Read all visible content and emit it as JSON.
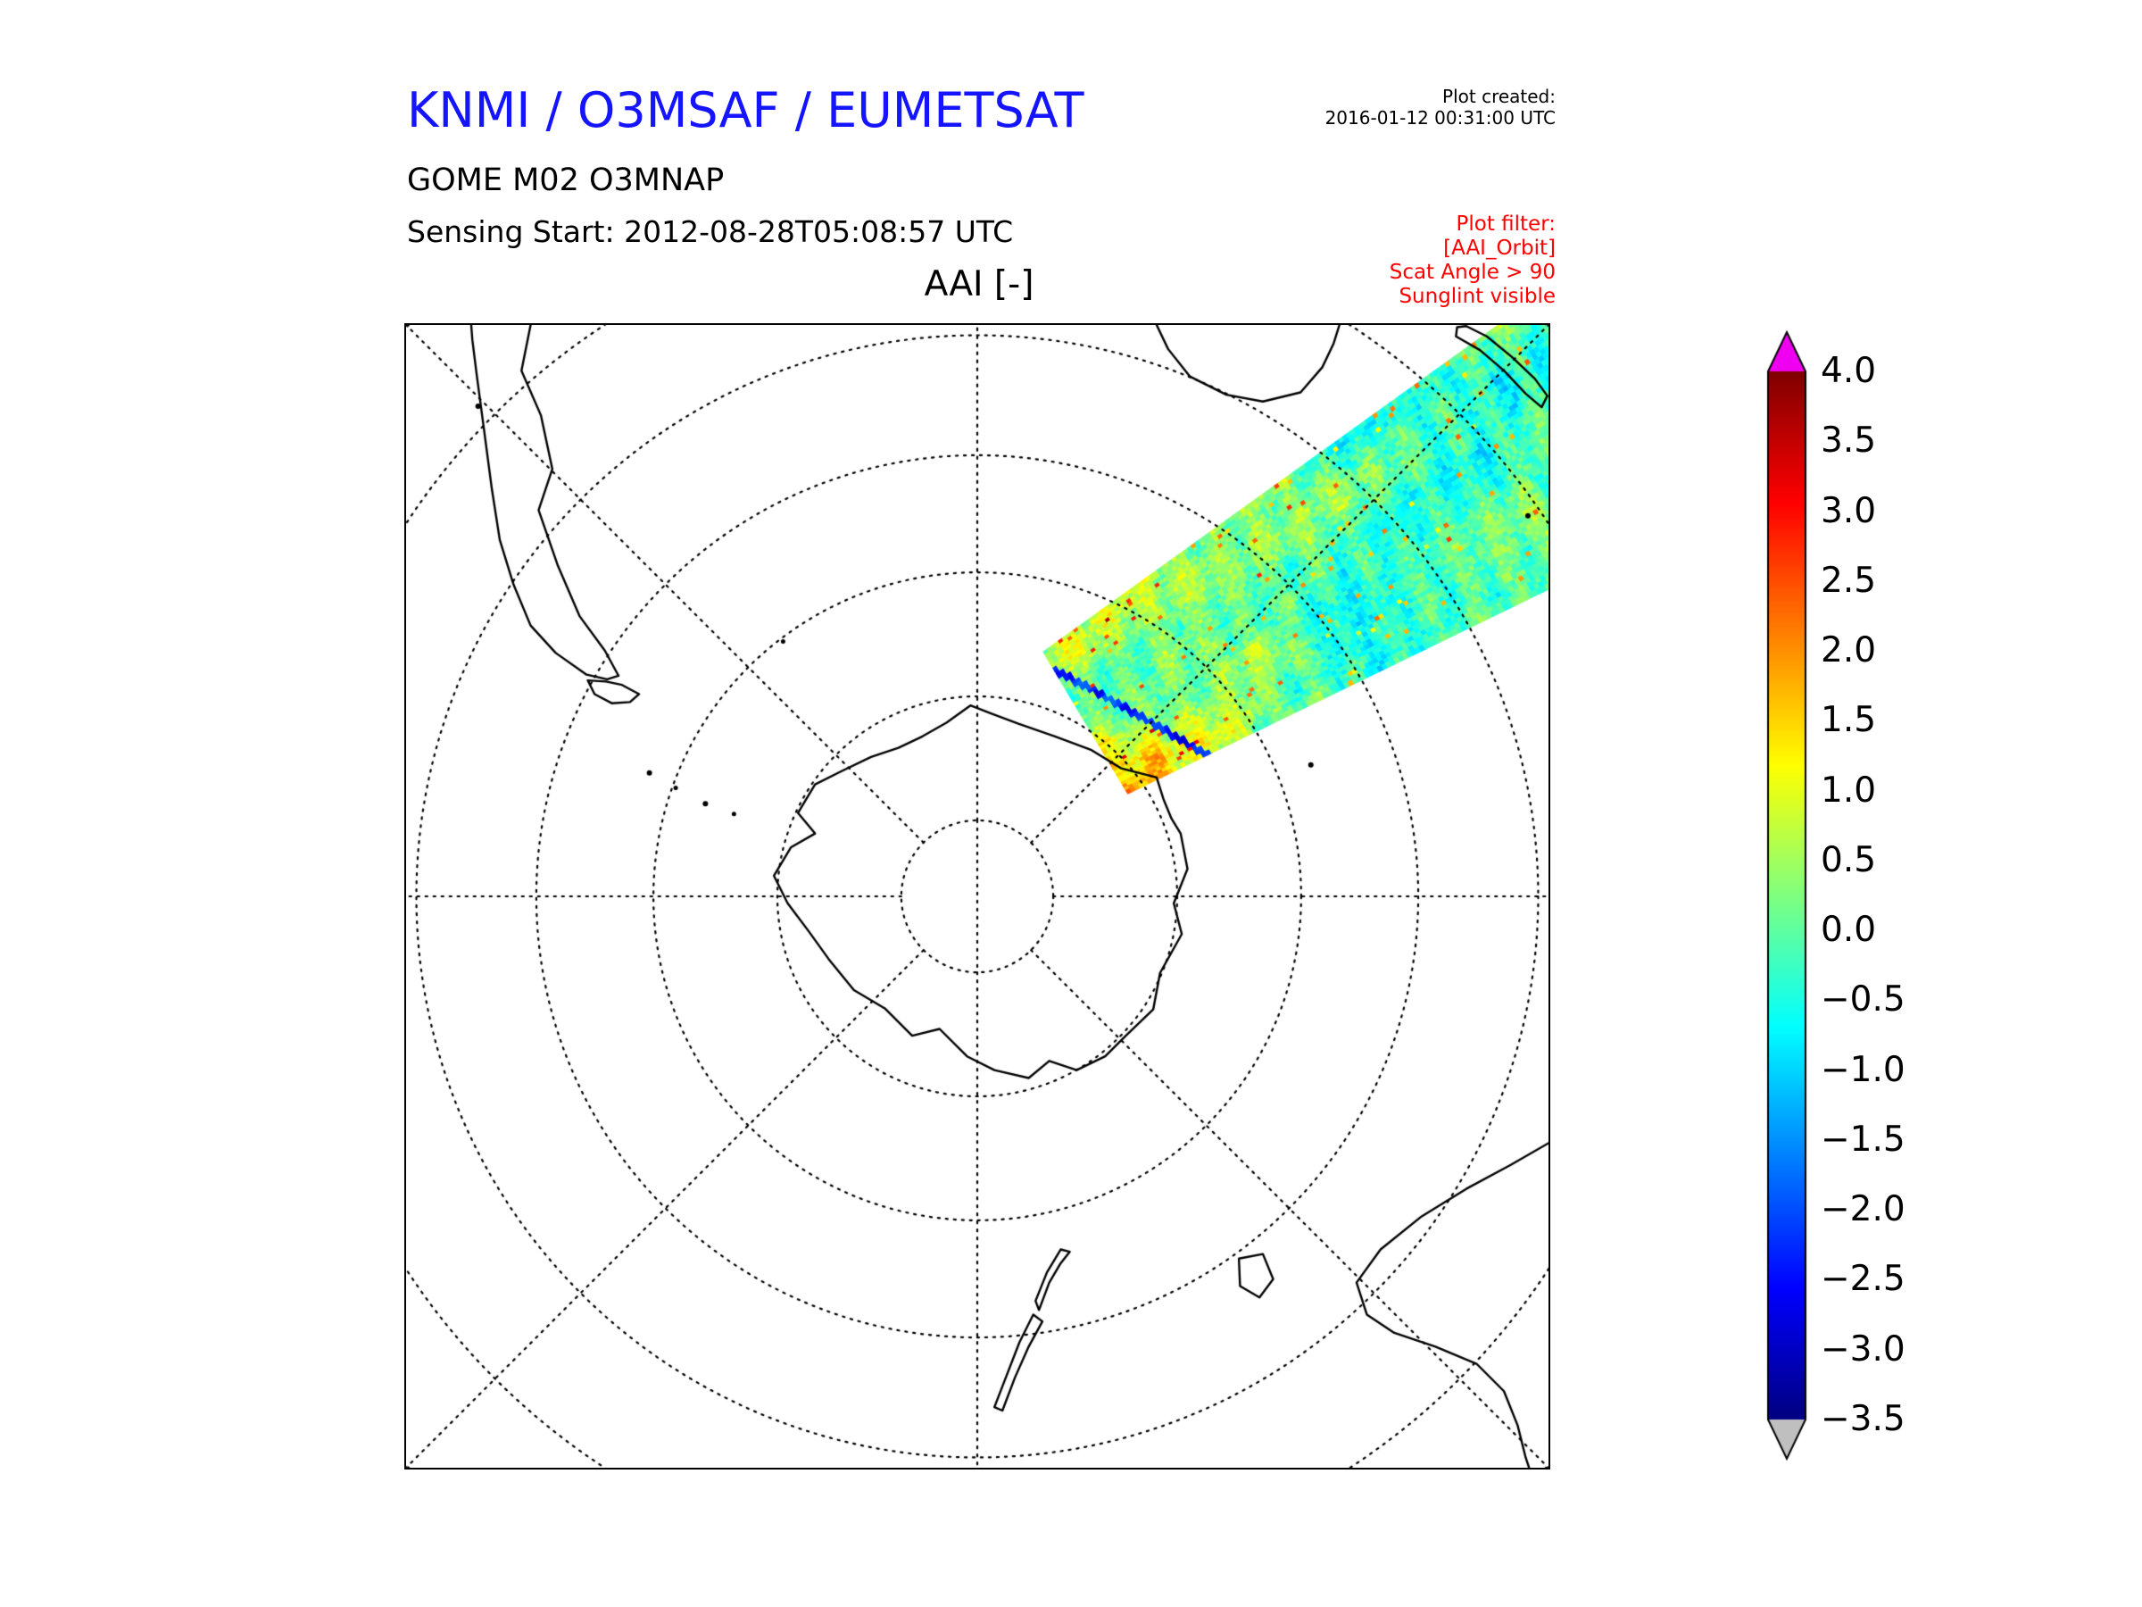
{
  "header": {
    "title": "KNMI / O3MSAF / EUMETSAT",
    "title_color": "#1414ff",
    "plot_created_label": "Plot created:",
    "plot_created_value": "2016-01-12 00:31:00 UTC"
  },
  "product": {
    "name": "GOME M02 O3MNAP",
    "sensing_start": "Sensing Start: 2012-08-28T05:08:57 UTC"
  },
  "plot_filter": {
    "color": "#ff0000",
    "lines": [
      "Plot filter:",
      "[AAI_Orbit]",
      "Scat Angle > 90",
      "Sunglint visible"
    ]
  },
  "chart_data": {
    "type": "heatmap",
    "title": "AAI [-]",
    "projection": "south polar stereographic, pole-centered square frame",
    "colorbar": {
      "colormap": "jet",
      "vmin": -3.5,
      "vmax": 4.0,
      "tick_step": 0.5,
      "ticks": [
        "4.0",
        "3.5",
        "3.0",
        "2.5",
        "2.0",
        "1.5",
        "1.0",
        "0.5",
        "0.0",
        "−0.5",
        "−1.0",
        "−1.5",
        "−2.0",
        "−2.5",
        "−3.0",
        "−3.5"
      ],
      "over_color": "#f000f0",
      "under_color": "#bfbfbf"
    },
    "graticule": {
      "style": "dotted",
      "circle_radii_frac": [
        0.133,
        0.35,
        0.567,
        0.772,
        0.982,
        1.194,
        1.411
      ],
      "radial_spacing_deg": 45
    },
    "coastlines": {
      "paths": [
        {
          "name": "antarctica",
          "closed": true,
          "points": [
            [
              0.494,
              0.333
            ],
            [
              0.512,
              0.34
            ],
            [
              0.536,
              0.349
            ],
            [
              0.568,
              0.36
            ],
            [
              0.6,
              0.372
            ],
            [
              0.626,
              0.388
            ],
            [
              0.657,
              0.396
            ],
            [
              0.663,
              0.415
            ],
            [
              0.67,
              0.432
            ],
            [
              0.678,
              0.445
            ],
            [
              0.684,
              0.476
            ],
            [
              0.672,
              0.506
            ],
            [
              0.679,
              0.533
            ],
            [
              0.66,
              0.567
            ],
            [
              0.654,
              0.599
            ],
            [
              0.63,
              0.622
            ],
            [
              0.612,
              0.64
            ],
            [
              0.587,
              0.652
            ],
            [
              0.563,
              0.644
            ],
            [
              0.545,
              0.659
            ],
            [
              0.515,
              0.652
            ],
            [
              0.491,
              0.64
            ],
            [
              0.467,
              0.616
            ],
            [
              0.443,
              0.622
            ],
            [
              0.419,
              0.598
            ],
            [
              0.392,
              0.582
            ],
            [
              0.37,
              0.555
            ],
            [
              0.352,
              0.53
            ],
            [
              0.334,
              0.506
            ],
            [
              0.322,
              0.482
            ],
            [
              0.337,
              0.457
            ],
            [
              0.358,
              0.445
            ],
            [
              0.343,
              0.427
            ],
            [
              0.358,
              0.402
            ],
            [
              0.382,
              0.39
            ],
            [
              0.407,
              0.378
            ],
            [
              0.431,
              0.37
            ],
            [
              0.452,
              0.36
            ],
            [
              0.473,
              0.348
            ]
          ]
        },
        {
          "name": "south-america",
          "closed": false,
          "points": [
            [
              0.109,
              0.0
            ],
            [
              0.101,
              0.04
            ],
            [
              0.118,
              0.079
            ],
            [
              0.128,
              0.126
            ],
            [
              0.116,
              0.162
            ],
            [
              0.133,
              0.211
            ],
            [
              0.152,
              0.255
            ],
            [
              0.174,
              0.285
            ],
            [
              0.186,
              0.307
            ],
            [
              0.176,
              0.31
            ],
            [
              0.158,
              0.306
            ],
            [
              0.131,
              0.287
            ],
            [
              0.109,
              0.263
            ],
            [
              0.094,
              0.227
            ],
            [
              0.082,
              0.188
            ],
            [
              0.075,
              0.143
            ],
            [
              0.068,
              0.09
            ],
            [
              0.062,
              0.045
            ],
            [
              0.058,
              0.013
            ],
            [
              0.057,
              0.0
            ]
          ]
        },
        {
          "name": "tierra-del-fuego",
          "closed": true,
          "points": [
            [
              0.159,
              0.311
            ],
            [
              0.175,
              0.312
            ],
            [
              0.189,
              0.315
            ],
            [
              0.204,
              0.323
            ],
            [
              0.196,
              0.33
            ],
            [
              0.18,
              0.331
            ],
            [
              0.165,
              0.323
            ]
          ]
        },
        {
          "name": "south-africa",
          "closed": false,
          "points": [
            [
              0.657,
              0.0
            ],
            [
              0.667,
              0.021
            ],
            [
              0.686,
              0.045
            ],
            [
              0.718,
              0.061
            ],
            [
              0.75,
              0.067
            ],
            [
              0.783,
              0.059
            ],
            [
              0.802,
              0.037
            ],
            [
              0.812,
              0.016
            ],
            [
              0.817,
              0.0
            ]
          ]
        },
        {
          "name": "madagascar",
          "closed": true,
          "points": [
            [
              0.919,
              0.01
            ],
            [
              0.94,
              0.022
            ],
            [
              0.961,
              0.04
            ],
            [
              0.98,
              0.06
            ],
            [
              0.994,
              0.072
            ],
            [
              0.999,
              0.062
            ],
            [
              0.988,
              0.047
            ],
            [
              0.968,
              0.028
            ],
            [
              0.946,
              0.01
            ],
            [
              0.928,
              0.001
            ],
            [
              0.92,
              0.002
            ]
          ]
        },
        {
          "name": "australia",
          "closed": false,
          "points": [
            [
              1.0,
              0.716
            ],
            [
              0.967,
              0.735
            ],
            [
              0.928,
              0.756
            ],
            [
              0.889,
              0.78
            ],
            [
              0.853,
              0.809
            ],
            [
              0.832,
              0.838
            ],
            [
              0.841,
              0.866
            ],
            [
              0.865,
              0.882
            ],
            [
              0.901,
              0.894
            ],
            [
              0.937,
              0.909
            ],
            [
              0.961,
              0.933
            ],
            [
              0.973,
              0.963
            ],
            [
              0.98,
              0.991
            ],
            [
              0.983,
              1.0
            ]
          ]
        },
        {
          "name": "tasmania",
          "closed": true,
          "points": [
            [
              0.729,
              0.817
            ],
            [
              0.75,
              0.813
            ],
            [
              0.759,
              0.835
            ],
            [
              0.747,
              0.851
            ],
            [
              0.73,
              0.841
            ]
          ]
        },
        {
          "name": "new-zealand-south-island",
          "closed": true,
          "points": [
            [
              0.515,
              0.947
            ],
            [
              0.525,
              0.921
            ],
            [
              0.537,
              0.89
            ],
            [
              0.549,
              0.866
            ],
            [
              0.557,
              0.872
            ],
            [
              0.545,
              0.894
            ],
            [
              0.533,
              0.921
            ],
            [
              0.522,
              0.95
            ]
          ]
        },
        {
          "name": "new-zealand-north-island",
          "closed": true,
          "points": [
            [
              0.551,
              0.854
            ],
            [
              0.561,
              0.829
            ],
            [
              0.573,
              0.809
            ],
            [
              0.581,
              0.811
            ],
            [
              0.573,
              0.821
            ],
            [
              0.563,
              0.838
            ],
            [
              0.554,
              0.862
            ]
          ]
        }
      ],
      "islands": [
        [
          0.33,
          0.277,
          2.5
        ],
        [
          0.213,
          0.392,
          3
        ],
        [
          0.236,
          0.405,
          2.5
        ],
        [
          0.262,
          0.419,
          3
        ],
        [
          0.287,
          0.428,
          2.5
        ],
        [
          0.792,
          0.385,
          3
        ],
        [
          0.982,
          0.167,
          3
        ],
        [
          0.063,
          0.071,
          3
        ]
      ]
    },
    "swath": {
      "description": "single GOME-2 orbit swath of Absorbing Aerosol Index crossing from near the Antarctic coast to the top-right map corner",
      "start_frac": [
        0.595,
        0.348
      ],
      "direction": [
        0.859,
        -0.512
      ],
      "length_frac": 0.526,
      "t_max": 1.16,
      "half_width_start_frac": 0.072,
      "half_width_end_frac": 0.117,
      "background_aai_range": [
        -1.2,
        0.6
      ],
      "features": [
        {
          "name": "aerosol-plume-red",
          "t": [
            0.0,
            0.45
          ],
          "s": [
            -0.1,
            1.0
          ],
          "aai": 3.4,
          "mode": "decay"
        },
        {
          "name": "orange-band-upper-edge",
          "t": [
            0.0,
            0.68
          ],
          "s": [
            -1.0,
            -0.35
          ],
          "aai": 2.1,
          "mode": "decay_inv"
        },
        {
          "name": "warm-lower-edge-far",
          "t": [
            0.5,
            1.16
          ],
          "s": [
            0.35,
            1.0
          ],
          "aai": 1.4,
          "mode": "grow"
        },
        {
          "name": "dark-blue-streak-near-cap",
          "t": [
            0.0,
            0.16
          ],
          "aai": -2.4,
          "mode": "streak"
        }
      ]
    }
  }
}
